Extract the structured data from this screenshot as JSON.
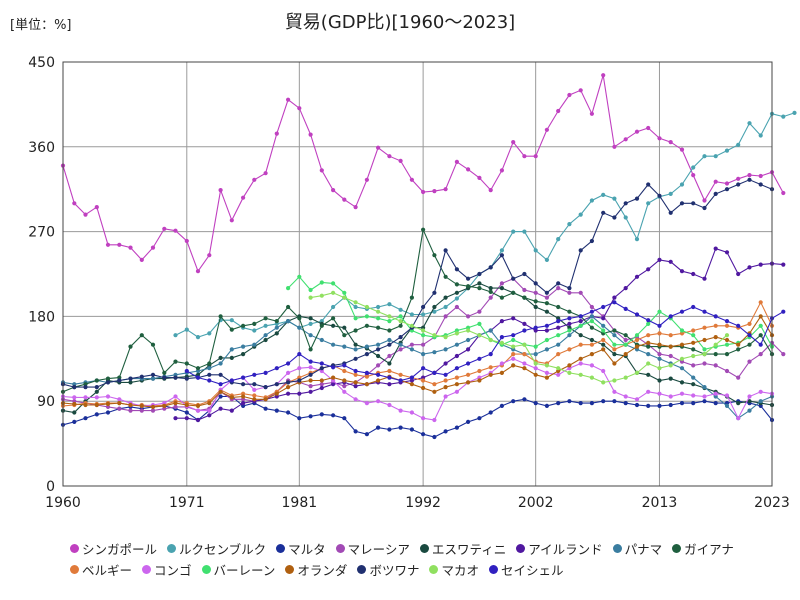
{
  "unit_label": "[単位：%]",
  "chart_data": {
    "type": "line",
    "title": "貿易(GDP比)[1960～2023]",
    "x_ticks": [
      "1960",
      "1971",
      "1981",
      "1992",
      "2002",
      "2013",
      "2023"
    ],
    "x_range": [
      1960,
      2023
    ],
    "y_ticks": [
      "0",
      "90",
      "180",
      "270",
      "360",
      "450"
    ],
    "ylim": [
      0,
      450
    ],
    "grid": true,
    "legend_position": "bottom",
    "series": [
      {
        "name": "シンガポール",
        "color": "#c040c0",
        "start": 1960,
        "values": [
          340,
          300,
          288,
          296,
          256,
          256,
          253,
          240,
          253,
          273,
          271,
          260,
          228,
          245,
          314,
          282,
          306,
          325,
          332,
          374,
          410,
          401,
          373,
          335,
          314,
          304,
          296,
          325,
          359,
          350,
          345,
          325,
          312,
          313,
          315,
          344,
          336,
          327,
          314,
          335,
          365,
          350,
          350,
          378,
          398,
          415,
          420,
          395,
          436,
          360,
          368,
          376,
          380,
          369,
          365,
          357,
          330,
          303,
          323,
          321,
          326,
          330,
          329,
          333,
          311
        ]
      },
      {
        "name": "ルクセンブルク",
        "color": "#4aa3b0",
        "start": 1970,
        "values": [
          160,
          166,
          158,
          162,
          176,
          176,
          168,
          165,
          170,
          172,
          175,
          168,
          172,
          175,
          190,
          200,
          190,
          188,
          190,
          193,
          187,
          182,
          182,
          185,
          190,
          199,
          210,
          225,
          232,
          250,
          270,
          270,
          250,
          240,
          262,
          278,
          288,
          303,
          309,
          305,
          285,
          262,
          300,
          307,
          310,
          320,
          338,
          350,
          350,
          356,
          362,
          385,
          372,
          395,
          392,
          396
        ]
      },
      {
        "name": "マルタ",
        "color": "#1a2f9a",
        "start": 1960,
        "values": [
          65,
          68,
          72,
          76,
          78,
          82,
          84,
          82,
          84,
          85,
          82,
          78,
          70,
          80,
          95,
          95,
          85,
          88,
          82,
          80,
          78,
          72,
          74,
          76,
          75,
          72,
          58,
          55,
          62,
          60,
          62,
          60,
          55,
          52,
          58,
          62,
          68,
          72,
          78,
          85,
          90,
          92,
          88,
          85,
          88,
          90,
          88,
          88,
          90,
          90,
          88,
          86,
          85,
          85,
          86,
          88,
          88,
          90,
          88,
          88,
          90,
          88,
          85,
          70
        ]
      },
      {
        "name": "マレーシア",
        "color": "#a24ab5",
        "start": 1960,
        "values": [
          92,
          90,
          88,
          86,
          84,
          82,
          80,
          80,
          80,
          82,
          84,
          84,
          80,
          82,
          100,
          92,
          92,
          90,
          92,
          100,
          112,
          110,
          106,
          108,
          110,
          106,
          110,
          118,
          128,
          138,
          145,
          150,
          150,
          158,
          180,
          190,
          180,
          185,
          200,
          215,
          220,
          208,
          205,
          200,
          210,
          205,
          205,
          190,
          180,
          165,
          155,
          158,
          150,
          140,
          138,
          132,
          128,
          130,
          128,
          122,
          115,
          132,
          140,
          152,
          140
        ]
      },
      {
        "name": "エスワティニ",
        "color": "#1a4a40",
        "start": 1960,
        "values": [
          80,
          78,
          90,
          100,
          112,
          110,
          110,
          112,
          114,
          114,
          115,
          116,
          118,
          128,
          136,
          136,
          140,
          148,
          155,
          162,
          175,
          180,
          178,
          172,
          170,
          168,
          150,
          146,
          138,
          130,
          152,
          168,
          168,
          190,
          200,
          205,
          210,
          215,
          210,
          210,
          205,
          200,
          190,
          185,
          178,
          168,
          160,
          155,
          150,
          140,
          138,
          120,
          118,
          112,
          114,
          110,
          108,
          104,
          100,
          95,
          88,
          90,
          88,
          86
        ]
      },
      {
        "name": "アイルランド",
        "color": "#5018a0",
        "start": 1970,
        "values": [
          72,
          72,
          70,
          75,
          82,
          80,
          88,
          90,
          92,
          95,
          98,
          98,
          100,
          104,
          108,
          110,
          106,
          108,
          110,
          108,
          110,
          112,
          115,
          120,
          130,
          138,
          145,
          160,
          165,
          175,
          178,
          172,
          165,
          165,
          168,
          172,
          175,
          180,
          178,
          200,
          210,
          222,
          230,
          240,
          238,
          228,
          225,
          220,
          252,
          248,
          225,
          232,
          235,
          236,
          235
        ]
      },
      {
        "name": "パナマ",
        "color": "#3a7da0",
        "start": 1960,
        "values": [
          110,
          108,
          110,
          112,
          110,
          112,
          114,
          114,
          114,
          116,
          118,
          120,
          122,
          125,
          130,
          145,
          148,
          150,
          160,
          168,
          175,
          168,
          160,
          155,
          150,
          148,
          145,
          148,
          150,
          155,
          150,
          145,
          140,
          142,
          145,
          150,
          155,
          160,
          165,
          150,
          145,
          140,
          140,
          145,
          150,
          160,
          170,
          180,
          170,
          160,
          150,
          145,
          140,
          135,
          130,
          125,
          115,
          105,
          95,
          85,
          72,
          80,
          90,
          95
        ]
      },
      {
        "name": "ガイアナ",
        "color": "#1f5f3f",
        "start": 1960,
        "values": [
          100,
          105,
          108,
          112,
          114,
          115,
          148,
          160,
          150,
          120,
          132,
          130,
          125,
          130,
          180,
          166,
          170,
          172,
          178,
          175,
          190,
          178,
          145,
          170,
          178,
          160,
          165,
          170,
          168,
          165,
          170,
          200,
          272,
          245,
          222,
          214,
          212,
          210,
          206,
          200,
          205,
          200,
          196,
          194,
          190,
          185,
          180,
          168,
          162,
          165,
          160,
          150,
          148,
          148,
          148,
          148,
          145,
          140,
          140,
          140,
          145,
          150,
          160,
          140
        ]
      },
      {
        "name": "ベルギー",
        "color": "#e07a3a",
        "start": 1960,
        "values": [
          85,
          86,
          88,
          87,
          88,
          88,
          86,
          86,
          85,
          86,
          90,
          88,
          86,
          90,
          102,
          96,
          98,
          96,
          94,
          100,
          110,
          115,
          120,
          125,
          128,
          122,
          118,
          116,
          120,
          122,
          118,
          115,
          112,
          108,
          112,
          115,
          118,
          122,
          126,
          128,
          140,
          140,
          132,
          130,
          140,
          145,
          150,
          150,
          155,
          145,
          150,
          155,
          160,
          162,
          160,
          162,
          165,
          168,
          170,
          170,
          168,
          172,
          195,
          170
        ]
      },
      {
        "name": "コンゴ",
        "color": "#cc66ee",
        "start": 1960,
        "values": [
          95,
          94,
          94,
          94,
          95,
          92,
          88,
          85,
          86,
          88,
          95,
          85,
          80,
          80,
          102,
          112,
          115,
          102,
          105,
          108,
          120,
          125,
          126,
          122,
          112,
          100,
          92,
          88,
          90,
          86,
          80,
          78,
          72,
          70,
          95,
          100,
          110,
          115,
          120,
          130,
          135,
          130,
          125,
          120,
          118,
          125,
          130,
          128,
          122,
          100,
          95,
          92,
          100,
          98,
          95,
          98,
          96,
          95,
          98,
          96,
          72,
          95,
          100,
          98
        ]
      },
      {
        "name": "バーレーン",
        "color": "#40e070",
        "start": 1980,
        "values": [
          210,
          222,
          208,
          216,
          215,
          205,
          178,
          180,
          178,
          175,
          180,
          165,
          160,
          158,
          160,
          165,
          168,
          172,
          155,
          150,
          155,
          150,
          148,
          155,
          160,
          165,
          170,
          175,
          165,
          150,
          150,
          160,
          172,
          185,
          178,
          165,
          160,
          145,
          148,
          150,
          152,
          158,
          170,
          148
        ]
      },
      {
        "name": "オランダ",
        "color": "#b06010",
        "start": 1960,
        "values": [
          88,
          87,
          86,
          86,
          87,
          88,
          86,
          85,
          84,
          85,
          88,
          86,
          85,
          88,
          100,
          94,
          95,
          92,
          92,
          98,
          105,
          110,
          112,
          112,
          115,
          112,
          110,
          108,
          112,
          116,
          112,
          108,
          104,
          100,
          105,
          108,
          110,
          112,
          118,
          120,
          128,
          125,
          118,
          115,
          122,
          128,
          135,
          140,
          145,
          130,
          140,
          148,
          152,
          150,
          148,
          150,
          152,
          155,
          158,
          155,
          150,
          162,
          180,
          160
        ]
      },
      {
        "name": "ボツワナ",
        "color": "#203070",
        "start": 1960,
        "values": [
          108,
          105,
          105,
          105,
          110,
          112,
          114,
          116,
          118,
          115,
          115,
          114,
          115,
          118,
          118,
          110,
          108,
          108,
          105,
          108,
          110,
          112,
          118,
          125,
          128,
          130,
          135,
          140,
          145,
          150,
          158,
          168,
          190,
          205,
          250,
          230,
          220,
          225,
          232,
          245,
          220,
          225,
          215,
          205,
          215,
          210,
          250,
          260,
          290,
          285,
          300,
          305,
          320,
          308,
          290,
          300,
          300,
          295,
          310,
          315,
          320,
          325,
          320,
          315
        ]
      },
      {
        "name": "マカオ",
        "color": "#90e060",
        "start": 1982,
        "values": [
          200,
          202,
          205,
          200,
          195,
          190,
          185,
          180,
          175,
          170,
          165,
          160,
          158,
          162,
          165,
          160,
          155,
          152,
          148,
          150,
          130,
          128,
          125,
          120,
          118,
          115,
          110,
          112,
          115,
          120,
          130,
          125,
          128,
          135,
          138,
          140,
          150,
          160
        ]
      },
      {
        "name": "セイシェル",
        "color": "#3020c0",
        "start": 1971,
        "values": [
          122,
          115,
          112,
          108,
          112,
          115,
          118,
          120,
          125,
          130,
          140,
          132,
          130,
          126,
          128,
          122,
          120,
          118,
          115,
          112,
          115,
          125,
          120,
          118,
          125,
          130,
          135,
          140,
          158,
          160,
          165,
          168,
          170,
          175,
          178,
          180,
          185,
          190,
          195,
          188,
          182,
          176,
          170,
          180,
          185,
          190,
          185,
          180,
          175,
          170,
          160,
          150,
          178,
          185
        ]
      }
    ]
  }
}
